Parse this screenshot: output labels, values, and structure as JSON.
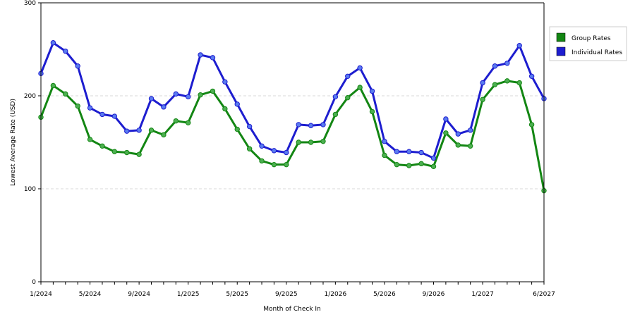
{
  "chart_data": {
    "type": "line",
    "title": "",
    "xlabel": "Month of Check In",
    "ylabel": "Lowest Average Rate (USD)",
    "ylim": [
      0,
      300
    ],
    "yticks": [
      "0",
      "100",
      "200",
      "300"
    ],
    "xticks": [
      "1/2024",
      "5/2024",
      "9/2024",
      "1/2025",
      "5/2025",
      "9/2025",
      "1/2026",
      "5/2026",
      "9/2026",
      "1/2027",
      "6/2027"
    ],
    "grid": "horizontal dashed",
    "legend_position": "right",
    "x": [
      "1/2024",
      "2/2024",
      "3/2024",
      "4/2024",
      "5/2024",
      "6/2024",
      "7/2024",
      "8/2024",
      "9/2024",
      "10/2024",
      "11/2024",
      "12/2024",
      "1/2025",
      "2/2025",
      "3/2025",
      "4/2025",
      "5/2025",
      "6/2025",
      "7/2025",
      "8/2025",
      "9/2025",
      "10/2025",
      "11/2025",
      "12/2025",
      "1/2026",
      "2/2026",
      "3/2026",
      "4/2026",
      "5/2026",
      "6/2026",
      "7/2026",
      "8/2026",
      "9/2026",
      "10/2026",
      "11/2026",
      "12/2026",
      "1/2027",
      "2/2027",
      "3/2027",
      "4/2027",
      "5/2027",
      "6/2027"
    ],
    "series": [
      {
        "name": "Group Rates",
        "color": "#138613",
        "marker_color": "#4caf50",
        "values": [
          177,
          211,
          202,
          189,
          153,
          146,
          140,
          139,
          137,
          163,
          158,
          173,
          171,
          201,
          205,
          186,
          164,
          143,
          130,
          126,
          126,
          150,
          150,
          151,
          180,
          198,
          209,
          183,
          136,
          126,
          125,
          127,
          124,
          160,
          147,
          146,
          196,
          212,
          216,
          214,
          169,
          98
        ]
      },
      {
        "name": "Individual Rates",
        "color": "#1d1dcf",
        "marker_color": "#5a7bf0",
        "values": [
          224,
          257,
          248,
          232,
          187,
          180,
          178,
          162,
          163,
          197,
          188,
          202,
          199,
          244,
          241,
          215,
          191,
          167,
          146,
          141,
          139,
          169,
          168,
          169,
          199,
          221,
          230,
          205,
          151,
          140,
          140,
          139,
          133,
          175,
          159,
          163,
          214,
          232,
          235,
          254,
          221,
          197
        ]
      }
    ]
  }
}
